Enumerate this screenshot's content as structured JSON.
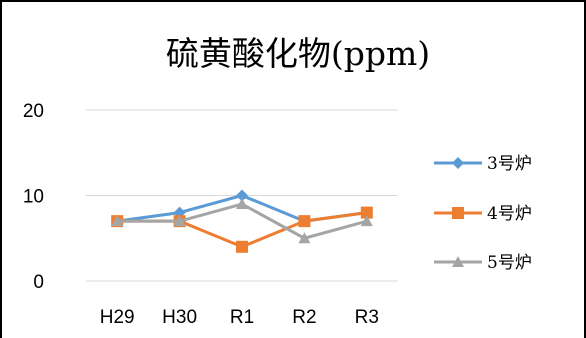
{
  "chart_data": {
    "type": "line",
    "title": "硫黄酸化物(ppm)",
    "xlabel": "",
    "ylabel": "",
    "categories": [
      "H29",
      "H30",
      "R1",
      "R2",
      "R3"
    ],
    "ylim": [
      0,
      20
    ],
    "yticks": [
      "0",
      "10",
      "20"
    ],
    "grid": true,
    "legend_position": "right",
    "series": [
      {
        "name": "3号炉",
        "values": [
          7,
          8,
          10,
          7,
          8
        ],
        "color": "#5B9BD5",
        "marker": "diamond"
      },
      {
        "name": "4号炉",
        "values": [
          7,
          7,
          4,
          7,
          8
        ],
        "color": "#ED7D31",
        "marker": "square"
      },
      {
        "name": "5号炉",
        "values": [
          7,
          7,
          9,
          5,
          7
        ],
        "color": "#A5A5A5",
        "marker": "triangle"
      }
    ]
  }
}
